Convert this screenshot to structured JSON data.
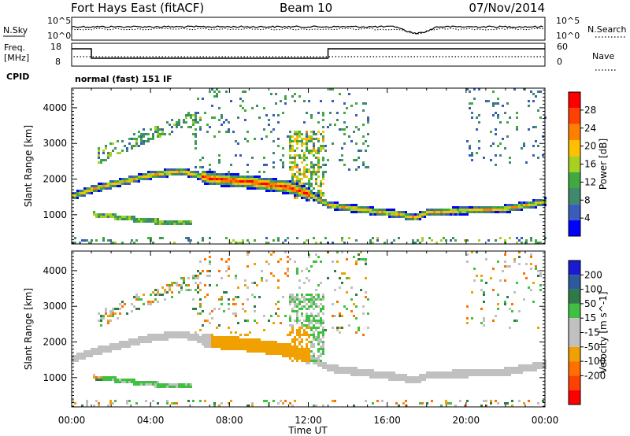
{
  "header": {
    "station": "Fort Hays East (fitACF)",
    "beam": "Beam 10",
    "date": "07/Nov/2014"
  },
  "noise_panel": {
    "left_label": "N.Sky",
    "right_label": "N.Search",
    "left_ticks": [
      "10^5",
      "10^0"
    ],
    "right_ticks": [
      "10^5",
      "10^0"
    ]
  },
  "freq_panel": {
    "left_label_1": "Freq.",
    "left_label_2": "[MHz]",
    "right_label": "Nave",
    "left_ticks": [
      "18",
      "8"
    ],
    "right_ticks": [
      "60",
      "0"
    ]
  },
  "cpid": {
    "label": "CPID",
    "text": "normal (fast) 151 IF"
  },
  "colors": {
    "power": [
      "#0000ff",
      "#3a5dbb",
      "#3f8a6d",
      "#40aa40",
      "#a8d020",
      "#ffc000",
      "#ff8000",
      "#ff4000",
      "#ff0000"
    ],
    "velocity": [
      "#1a1ad0",
      "#2c5a9c",
      "#2e7a48",
      "#40c040",
      "#c0c0c0",
      "#c0c0c0",
      "#f0a000",
      "#ff7000",
      "#ff4000",
      "#ff0000"
    ]
  },
  "chart_data": [
    {
      "type": "heatmap",
      "title": "",
      "xlabel": "",
      "ylabel": "Slant Range [km]",
      "xlim": [
        0,
        24
      ],
      "ylim": [
        180,
        4550
      ],
      "x_tick_labels": [
        "00:00",
        "04:00",
        "08:00",
        "12:00",
        "16:00",
        "20:00",
        "00:00"
      ],
      "y_ticks": [
        1000,
        2000,
        3000,
        4000
      ],
      "y_tick_labels": [
        "1000",
        "2000",
        "3000",
        "4000"
      ],
      "colorbar": {
        "label": "Power [dB]",
        "range": [
          0,
          32
        ],
        "tick_values": [
          4,
          8,
          12,
          16,
          20,
          24,
          28
        ],
        "tick_labels": [
          "4",
          "8",
          "12",
          "16",
          "20",
          "24",
          "28"
        ]
      },
      "features": [
        {
          "name": "main echo band",
          "points": [
            [
              0.0,
              1550
            ],
            [
              1.0,
              1750
            ],
            [
              2.5,
              1950
            ],
            [
              4.0,
              2150
            ],
            [
              5.5,
              2250
            ],
            [
              7.0,
              2050
            ],
            [
              9.0,
              1950
            ],
            [
              11.0,
              1800
            ],
            [
              12.0,
              1600
            ],
            [
              13.0,
              1300
            ],
            [
              15.0,
              1150
            ],
            [
              16.5,
              1050
            ],
            [
              17.4,
              950
            ],
            [
              18.0,
              1100
            ],
            [
              20.0,
              1150
            ],
            [
              22.0,
              1200
            ],
            [
              24.0,
              1400
            ]
          ]
        },
        {
          "name": "lower band",
          "points": [
            [
              1.0,
              1050
            ],
            [
              2.5,
              950
            ],
            [
              4.0,
              850
            ],
            [
              5.5,
              800
            ]
          ]
        },
        {
          "name": "scattered high range",
          "points": [
            [
              1.5,
              2700
            ],
            [
              3.0,
              3100
            ],
            [
              4.5,
              3400
            ],
            [
              6.0,
              3700
            ]
          ]
        }
      ],
      "peak_power_dB": 28
    },
    {
      "type": "heatmap",
      "title": "",
      "xlabel": "Time UT",
      "ylabel": "Slant Range [km]",
      "xlim": [
        0,
        24
      ],
      "ylim": [
        180,
        4550
      ],
      "x_tick_labels": [
        "00:00",
        "04:00",
        "08:00",
        "12:00",
        "16:00",
        "20:00",
        "00:00"
      ],
      "y_ticks": [
        1000,
        2000,
        3000,
        4000
      ],
      "y_tick_labels": [
        "1000",
        "2000",
        "3000",
        "4000"
      ],
      "colorbar": {
        "label": "Velocity [m s^-1]",
        "range": [
          -250,
          250
        ],
        "tick_values": [
          200,
          100,
          50,
          15,
          -15,
          -50,
          -100,
          -200
        ],
        "tick_labels": [
          "200",
          "100",
          "50",
          "15",
          "-15",
          "-50",
          "-100",
          "-200"
        ]
      },
      "features": [
        {
          "name": "ground scatter band",
          "velocity_ms": 0
        },
        {
          "name": "orange region 07:00-12:00",
          "velocity_ms": -50,
          "range_km": [
            1500,
            2400
          ]
        },
        {
          "name": "green lower band 02:00-06:00",
          "velocity_ms": 50,
          "range_km": [
            650,
            1050
          ]
        }
      ]
    }
  ]
}
